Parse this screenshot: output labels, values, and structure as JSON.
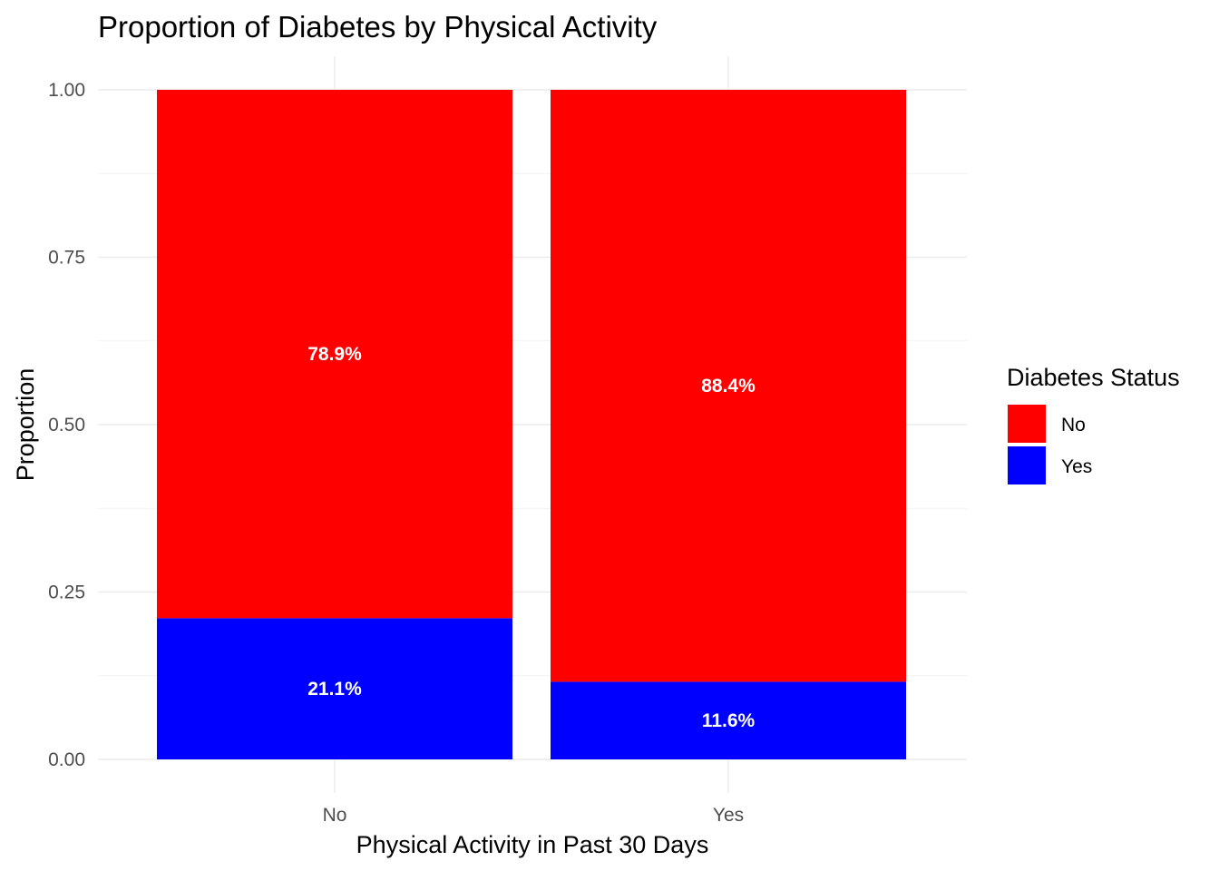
{
  "chart_data": {
    "type": "bar",
    "stacked": true,
    "title": "Proportion of Diabetes by Physical Activity",
    "xlabel": "Physical Activity in Past 30 Days",
    "ylabel": "Proportion",
    "categories": [
      "No",
      "Yes"
    ],
    "series": [
      {
        "name": "No",
        "color": "#ff0000",
        "values": [
          0.789,
          0.884
        ],
        "labels": [
          "78.9%",
          "88.4%"
        ]
      },
      {
        "name": "Yes",
        "color": "#0000ff",
        "values": [
          0.211,
          0.116
        ],
        "labels": [
          "21.1%",
          "11.6%"
        ]
      }
    ],
    "ylim": [
      0,
      1
    ],
    "yticks": [
      0,
      0.25,
      0.5,
      0.75,
      1
    ],
    "ytick_labels": [
      "0.00",
      "0.25",
      "0.50",
      "0.75",
      "1.00"
    ],
    "grid": true,
    "legend": {
      "title": "Diabetes Status",
      "position": "right"
    }
  }
}
